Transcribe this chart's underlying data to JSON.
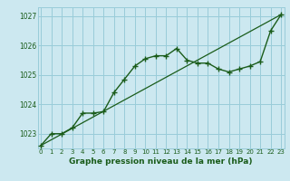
{
  "title": "Graphe pression niveau de la mer (hPa)",
  "bg_color": "#cce8f0",
  "grid_color": "#99ccd9",
  "line_color": "#1a5c1a",
  "line1_x": [
    0,
    1,
    2,
    3,
    4,
    5,
    6,
    7,
    8,
    9,
    10,
    11,
    12,
    13,
    14,
    15,
    16,
    17,
    18,
    19,
    20,
    21,
    22,
    23
  ],
  "line1_y": [
    1022.6,
    1023.0,
    1023.0,
    1023.2,
    1023.7,
    1023.7,
    1023.75,
    1024.4,
    1024.85,
    1025.3,
    1025.55,
    1025.65,
    1025.65,
    1025.9,
    1025.5,
    1025.4,
    1025.4,
    1025.2,
    1025.1,
    1025.2,
    1025.3,
    1025.45,
    1026.5,
    1027.05
  ],
  "line2_x": [
    0,
    23
  ],
  "line2_y": [
    1022.6,
    1027.05
  ],
  "ylim": [
    1022.5,
    1027.3
  ],
  "xlim": [
    -0.3,
    23.3
  ],
  "yticks": [
    1023,
    1024,
    1025,
    1026,
    1027
  ],
  "xticks": [
    0,
    1,
    2,
    3,
    4,
    5,
    6,
    7,
    8,
    9,
    10,
    11,
    12,
    13,
    14,
    15,
    16,
    17,
    18,
    19,
    20,
    21,
    22,
    23
  ],
  "ylabel_fontsize": 5.5,
  "xlabel_fontsize": 5.0,
  "title_fontsize": 6.5
}
